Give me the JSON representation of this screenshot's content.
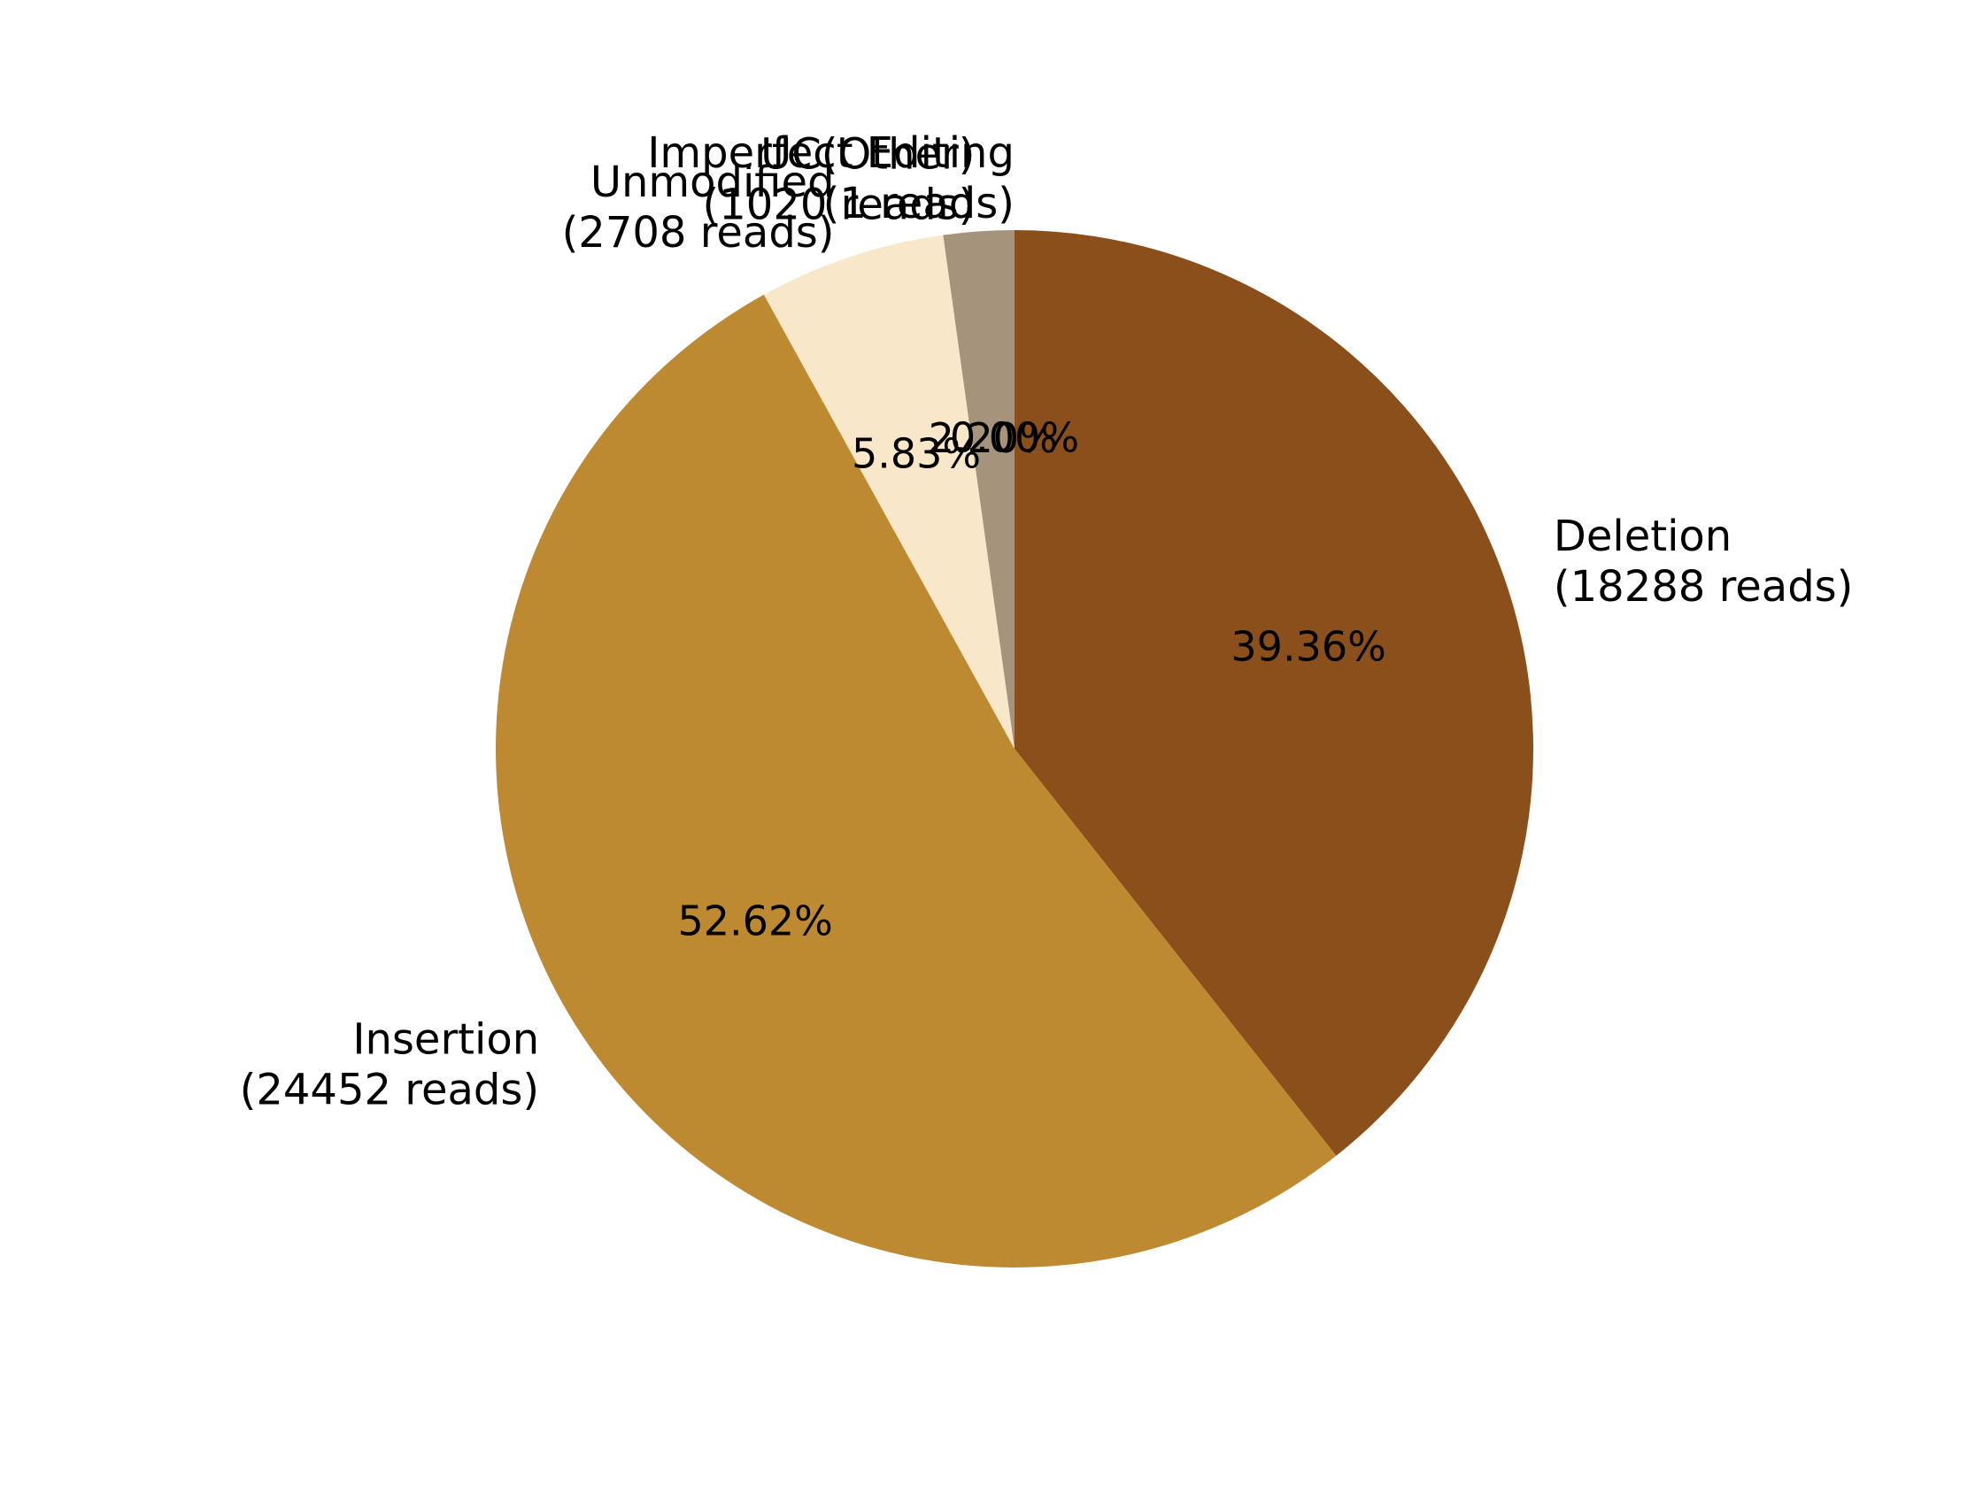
{
  "chart_data": {
    "type": "pie",
    "title": "",
    "start_angle_deg": 90,
    "direction": "clockwise",
    "slices": [
      {
        "label": "Deletion",
        "reads_label": "(18288 reads)",
        "reads": 18288,
        "value": 39.36,
        "pct_text": "39.36%",
        "color": "#8B4F1C"
      },
      {
        "label": "Insertion",
        "reads_label": "(24452 reads)",
        "reads": 24452,
        "value": 52.62,
        "pct_text": "52.62%",
        "color": "#BE8A31"
      },
      {
        "label": "Unmodified",
        "reads_label": "(2708 reads)",
        "reads": 2708,
        "value": 5.83,
        "pct_text": "5.83%",
        "color": "#F8E8C9"
      },
      {
        "label": "UC(Other)",
        "reads_label": "(1020 reads)",
        "reads": 1020,
        "value": 2.2,
        "pct_text": "2.20%",
        "color": "#A5937B"
      },
      {
        "label": "Imperfect Editing",
        "reads_label": "(1 reads)",
        "reads": 1,
        "value": 0.0,
        "pct_text": "0.00%",
        "color": "#6B3A10"
      }
    ]
  }
}
